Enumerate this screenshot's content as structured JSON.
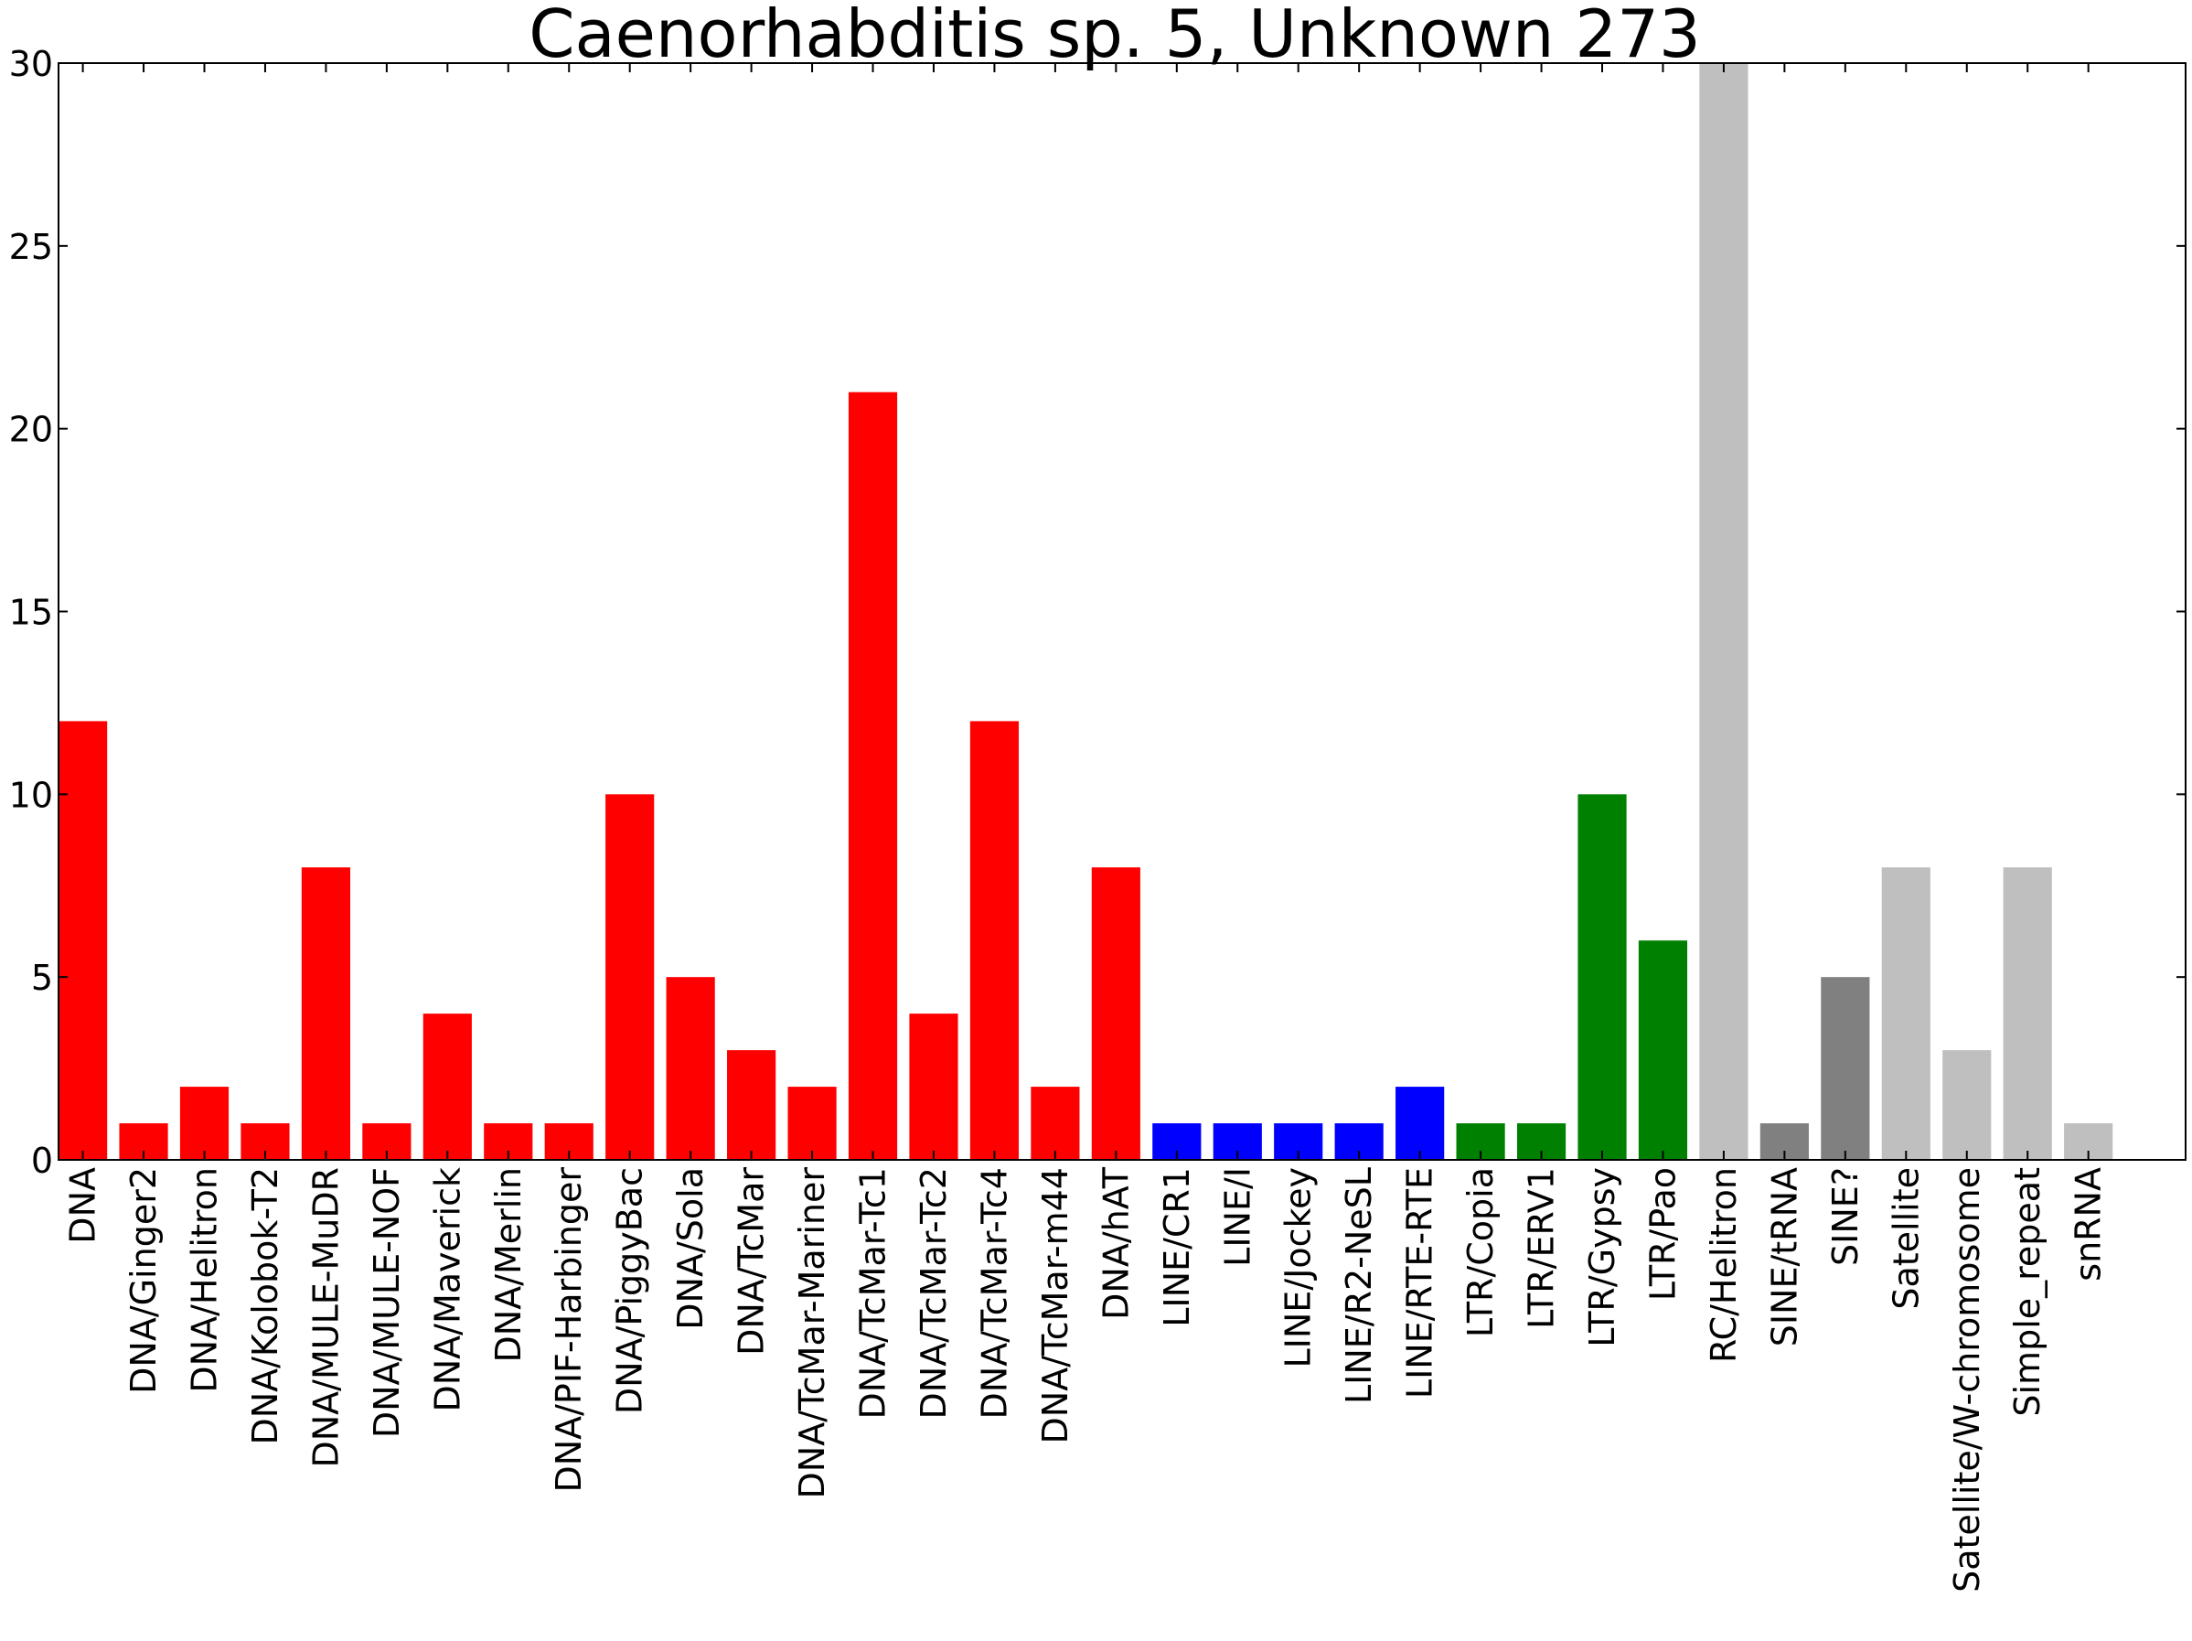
{
  "chart_data": {
    "type": "bar",
    "title": "Caenorhabditis sp. 5, Unknown 273",
    "xlabel": "",
    "ylabel": "",
    "ylim": [
      0,
      30
    ],
    "yticks": [
      0,
      5,
      10,
      15,
      20,
      25,
      30
    ],
    "grid": false,
    "legend": "none",
    "categories": [
      "DNA",
      "DNA/Ginger2",
      "DNA/Helitron",
      "DNA/Kolobok-T2",
      "DNA/MULE-MuDR",
      "DNA/MULE-NOF",
      "DNA/Maverick",
      "DNA/Merlin",
      "DNA/PIF-Harbinger",
      "DNA/PiggyBac",
      "DNA/Sola",
      "DNA/TcMar",
      "DNA/TcMar-Mariner",
      "DNA/TcMar-Tc1",
      "DNA/TcMar-Tc2",
      "DNA/TcMar-Tc4",
      "DNA/TcMar-m44",
      "DNA/hAT",
      "LINE/CR1",
      "LINE/I",
      "LINE/Jockey",
      "LINE/R2-NeSL",
      "LINE/RTE-RTE",
      "LTR/Copia",
      "LTR/ERV1",
      "LTR/Gypsy",
      "LTR/Pao",
      "RC/Helitron",
      "SINE/tRNA",
      "SINE?",
      "Satellite",
      "Satellite/W-chromosome",
      "Simple_repeat",
      "snRNA"
    ],
    "values": [
      12,
      1,
      2,
      1,
      8,
      1,
      4,
      1,
      1,
      10,
      5,
      3,
      2,
      21,
      4,
      12,
      2,
      8,
      1,
      1,
      1,
      1,
      2,
      1,
      1,
      10,
      6,
      30,
      1,
      5,
      8,
      3,
      8,
      1
    ],
    "colors": [
      "#ff0000",
      "#ff0000",
      "#ff0000",
      "#ff0000",
      "#ff0000",
      "#ff0000",
      "#ff0000",
      "#ff0000",
      "#ff0000",
      "#ff0000",
      "#ff0000",
      "#ff0000",
      "#ff0000",
      "#ff0000",
      "#ff0000",
      "#ff0000",
      "#ff0000",
      "#ff0000",
      "#0000ff",
      "#0000ff",
      "#0000ff",
      "#0000ff",
      "#0000ff",
      "#008000",
      "#008000",
      "#008000",
      "#008000",
      "#bfbfbf",
      "#808080",
      "#808080",
      "#bfbfbf",
      "#bfbfbf",
      "#bfbfbf",
      "#bfbfbf"
    ]
  }
}
